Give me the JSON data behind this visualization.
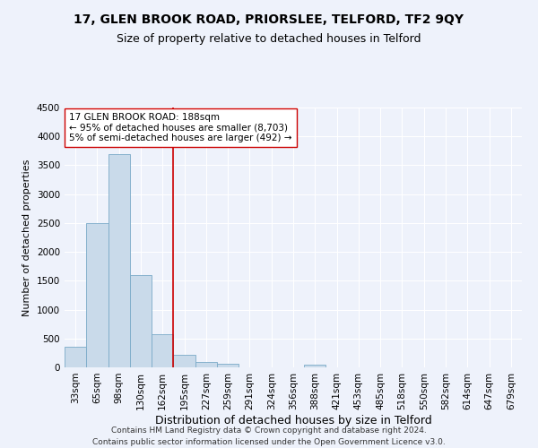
{
  "title1": "17, GLEN BROOK ROAD, PRIORSLEE, TELFORD, TF2 9QY",
  "title2": "Size of property relative to detached houses in Telford",
  "xlabel": "Distribution of detached houses by size in Telford",
  "ylabel": "Number of detached properties",
  "categories": [
    "33sqm",
    "65sqm",
    "98sqm",
    "130sqm",
    "162sqm",
    "195sqm",
    "227sqm",
    "259sqm",
    "291sqm",
    "324sqm",
    "356sqm",
    "388sqm",
    "421sqm",
    "453sqm",
    "485sqm",
    "518sqm",
    "550sqm",
    "582sqm",
    "614sqm",
    "647sqm",
    "679sqm"
  ],
  "values": [
    350,
    2500,
    3700,
    1600,
    575,
    225,
    100,
    60,
    0,
    0,
    0,
    50,
    0,
    0,
    0,
    0,
    0,
    0,
    0,
    0,
    0
  ],
  "bar_color": "#c9daea",
  "bar_edge_color": "#7aaac8",
  "vline_x": 4.5,
  "vline_color": "#cc0000",
  "annotation_text": "17 GLEN BROOK ROAD: 188sqm\n← 95% of detached houses are smaller (8,703)\n5% of semi-detached houses are larger (492) →",
  "annotation_box_color": "white",
  "annotation_box_edge": "#cc0000",
  "ylim": [
    0,
    4500
  ],
  "yticks": [
    0,
    500,
    1000,
    1500,
    2000,
    2500,
    3000,
    3500,
    4000,
    4500
  ],
  "footnote": "Contains HM Land Registry data © Crown copyright and database right 2024.\nContains public sector information licensed under the Open Government Licence v3.0.",
  "background_color": "#eef2fb",
  "grid_color": "#ffffff",
  "title1_fontsize": 10,
  "title2_fontsize": 9,
  "xlabel_fontsize": 9,
  "ylabel_fontsize": 8,
  "tick_fontsize": 7.5,
  "annot_fontsize": 7.5,
  "footnote_fontsize": 6.5
}
